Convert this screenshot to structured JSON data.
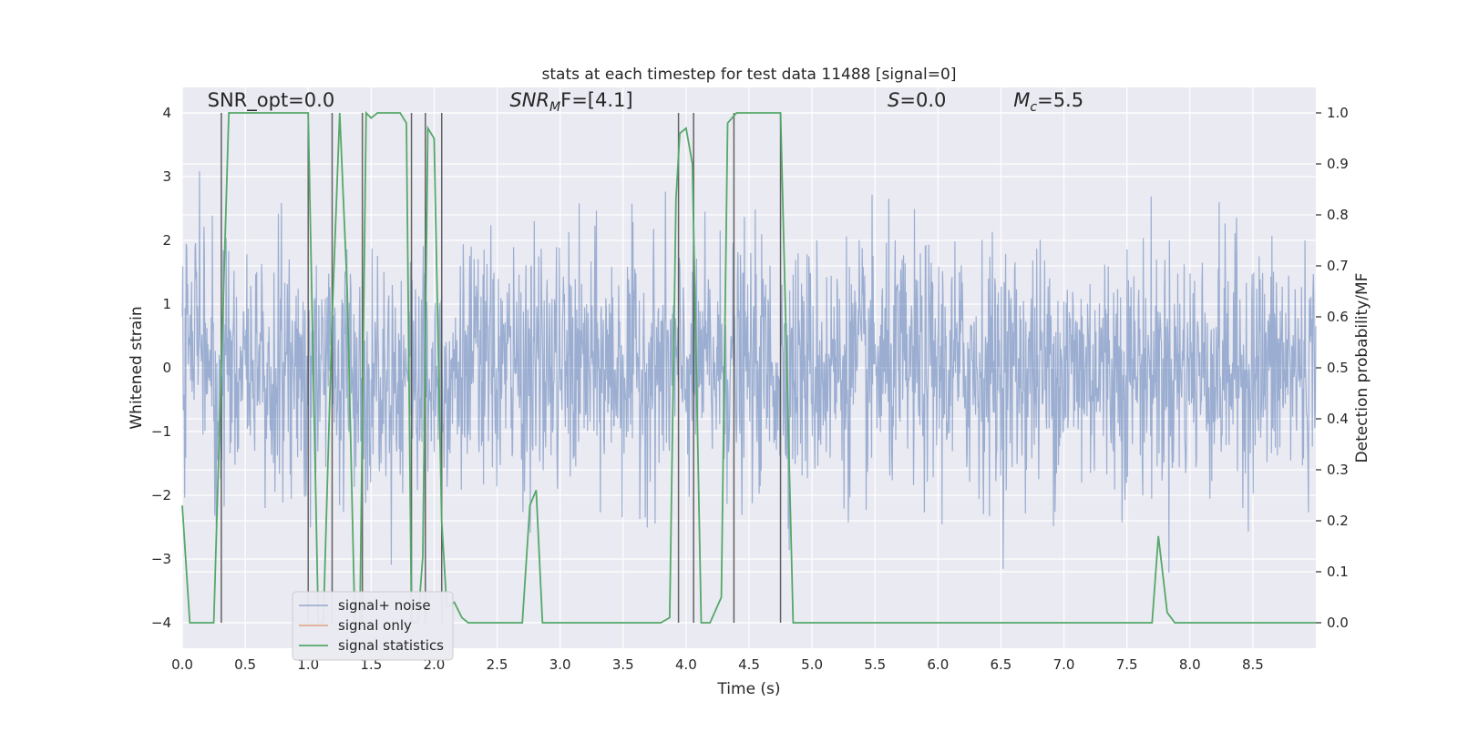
{
  "chart_data": {
    "type": "line",
    "title": "stats at each timestep for test data 11488 [signal=0]",
    "xlabel": "Time (s)",
    "ylabel": "Whitened strain",
    "y2label": "Detection probability/MF",
    "xlim": [
      0,
      9.0
    ],
    "ylim": [
      -4.4,
      4.4
    ],
    "y2lim": [
      -0.05,
      1.05
    ],
    "x_ticks": [
      0.0,
      0.5,
      1.0,
      1.5,
      2.0,
      2.5,
      3.0,
      3.5,
      4.0,
      4.5,
      5.0,
      5.5,
      6.0,
      6.5,
      7.0,
      7.5,
      8.0,
      8.5
    ],
    "x_tick_labels": [
      "0.0",
      "0.5",
      "1.0",
      "1.5",
      "2.0",
      "2.5",
      "3.0",
      "3.5",
      "4.0",
      "4.5",
      "5.0",
      "5.5",
      "6.0",
      "6.5",
      "7.0",
      "7.5",
      "8.0",
      "8.5"
    ],
    "y_ticks": [
      -4,
      -3,
      -2,
      -1,
      0,
      1,
      2,
      3,
      4
    ],
    "y_tick_labels": [
      "−4",
      "−3",
      "−2",
      "−1",
      "0",
      "1",
      "2",
      "3",
      "4"
    ],
    "y2_ticks": [
      0.0,
      0.1,
      0.2,
      0.3,
      0.4,
      0.5,
      0.6,
      0.7,
      0.8,
      0.9,
      1.0
    ],
    "y2_tick_labels": [
      "0.0",
      "0.1",
      "0.2",
      "0.3",
      "0.4",
      "0.5",
      "0.6",
      "0.7",
      "0.8",
      "0.9",
      "1.0"
    ],
    "grid": true,
    "legend_position": "lower-left",
    "annotations": [
      {
        "text": "SNR_opt=0.0",
        "x": 0.2,
        "y": 4.1
      },
      {
        "text": "SNR_MF=[4.1]",
        "x": 2.6,
        "y": 4.1,
        "styled": true,
        "main": "SNR",
        "sub": "M",
        "rest": "F=[4.1]"
      },
      {
        "text": "S=0.0",
        "x": 5.6,
        "y": 4.1,
        "styled": true,
        "main": "S",
        "sub": "",
        "rest": "=0.0"
      },
      {
        "text": "M_c=5.5",
        "x": 6.6,
        "y": 4.1,
        "styled": true,
        "main": "M",
        "sub": "c",
        "rest": "=5.5"
      }
    ],
    "vertical_lines_x": [
      0.31,
      1.0,
      1.19,
      1.43,
      1.82,
      1.93,
      2.06,
      3.94,
      4.06,
      4.38,
      4.75
    ],
    "series": [
      {
        "name": "signal+ noise",
        "color": "#4c72b0",
        "noise_sigma": 0.95,
        "samples": 2300
      },
      {
        "name": "signal only",
        "color": "#dd8452",
        "values": []
      },
      {
        "name": "signal statistics",
        "color": "#55a868",
        "x": [
          0.0,
          0.06,
          0.25,
          0.37,
          0.45,
          0.95,
          1.0,
          1.08,
          1.12,
          1.19,
          1.25,
          1.31,
          1.37,
          1.41,
          1.46,
          1.5,
          1.55,
          1.73,
          1.78,
          1.82,
          1.87,
          1.91,
          1.95,
          2.0,
          2.06,
          2.1,
          2.16,
          2.22,
          2.27,
          2.31,
          2.38,
          2.7,
          2.76,
          2.81,
          2.86,
          2.91,
          3.3,
          3.38,
          3.8,
          3.87,
          3.92,
          3.95,
          4.0,
          4.05,
          4.12,
          4.19,
          4.28,
          4.33,
          4.4,
          4.45,
          4.75,
          4.85,
          4.9,
          5.5,
          5.9,
          7.0,
          7.7,
          7.75,
          7.82,
          7.88,
          8.25,
          9.0
        ],
        "values": [
          0.23,
          0.0,
          0.0,
          1.0,
          1.0,
          1.0,
          1.0,
          0.0,
          0.0,
          0.6,
          1.0,
          0.65,
          0.0,
          0.0,
          1.0,
          0.99,
          1.0,
          1.0,
          0.98,
          0.0,
          0.0,
          0.13,
          0.97,
          0.95,
          0.2,
          0.03,
          0.04,
          0.01,
          0.0,
          0.0,
          0.0,
          0.0,
          0.23,
          0.26,
          0.0,
          0.0,
          0.0,
          0.0,
          0.0,
          0.01,
          0.83,
          0.96,
          0.97,
          0.9,
          0.0,
          0.0,
          0.05,
          0.98,
          1.0,
          1.0,
          1.0,
          0.0,
          0.0,
          0.0,
          0.0,
          0.0,
          0.0,
          0.17,
          0.02,
          0.0,
          0.0,
          0.0
        ]
      }
    ]
  }
}
